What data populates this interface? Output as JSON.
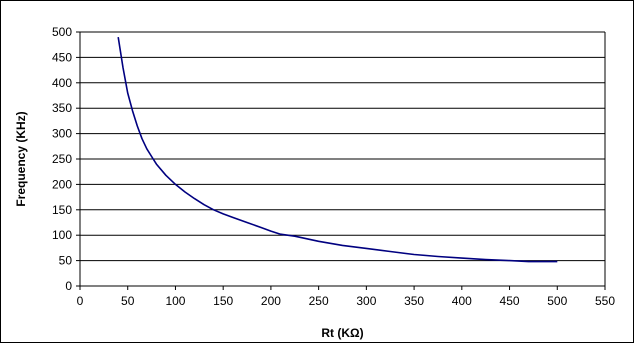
{
  "chart_data": {
    "type": "line",
    "title": "",
    "xlabel": "Rt (KΩ)",
    "ylabel": "Frequency (KHz)",
    "xlim": [
      0,
      550
    ],
    "ylim": [
      0,
      500
    ],
    "xticks": [
      0,
      50,
      100,
      150,
      200,
      250,
      300,
      350,
      400,
      450,
      500,
      550
    ],
    "yticks": [
      0,
      50,
      100,
      150,
      200,
      250,
      300,
      350,
      400,
      450,
      500
    ],
    "grid": "horizontal",
    "legend": "none",
    "series": [
      {
        "color": "#000080",
        "x": [
          40,
          45,
          50,
          55,
          60,
          65,
          70,
          75,
          80,
          90,
          100,
          110,
          120,
          130,
          140,
          150,
          160,
          175,
          190,
          200,
          210,
          225,
          250,
          275,
          300,
          325,
          350,
          375,
          400,
          425,
          450,
          470,
          500
        ],
        "y": [
          490,
          430,
          380,
          345,
          315,
          290,
          270,
          255,
          240,
          218,
          200,
          185,
          172,
          160,
          150,
          142,
          135,
          125,
          115,
          108,
          102,
          98,
          88,
          80,
          74,
          68,
          62,
          58,
          55,
          52,
          50,
          48,
          48
        ]
      }
    ]
  }
}
